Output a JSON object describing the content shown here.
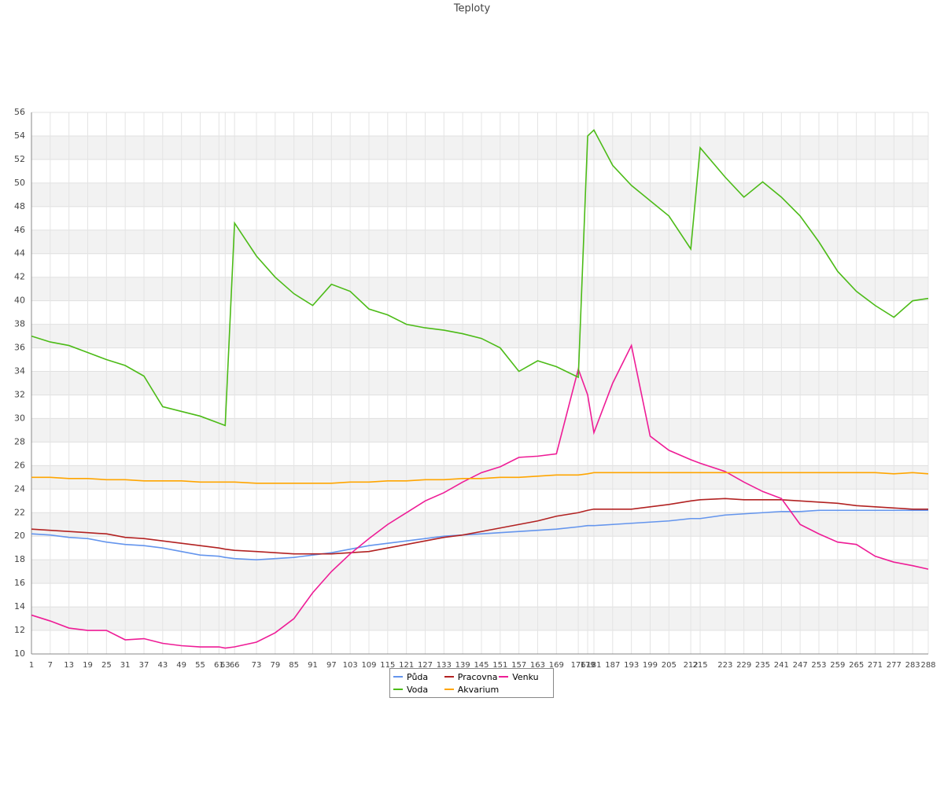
{
  "chart_data": {
    "type": "line",
    "title": "Teploty",
    "x": [
      1,
      7,
      13,
      19,
      25,
      31,
      37,
      43,
      49,
      55,
      61,
      63,
      66,
      73,
      79,
      85,
      91,
      97,
      103,
      109,
      115,
      121,
      127,
      133,
      139,
      145,
      151,
      157,
      163,
      169,
      176,
      179,
      181,
      187,
      193,
      199,
      205,
      212,
      215,
      223,
      229,
      235,
      241,
      247,
      253,
      259,
      265,
      271,
      277,
      283,
      288
    ],
    "xlim": [
      1,
      288
    ],
    "xticks": [
      1,
      7,
      13,
      19,
      25,
      31,
      37,
      43,
      49,
      55,
      61,
      63,
      66,
      73,
      79,
      85,
      91,
      97,
      103,
      109,
      115,
      121,
      127,
      133,
      139,
      145,
      151,
      157,
      163,
      169,
      176,
      179,
      181,
      187,
      193,
      199,
      205,
      212,
      215,
      223,
      229,
      235,
      241,
      247,
      253,
      259,
      265,
      271,
      277,
      283,
      288
    ],
    "ylim": [
      10,
      56
    ],
    "yticks": [
      10,
      12,
      14,
      16,
      18,
      20,
      22,
      24,
      26,
      28,
      30,
      32,
      34,
      36,
      38,
      40,
      42,
      44,
      46,
      48,
      50,
      52,
      54,
      56
    ],
    "grid": true,
    "series": [
      {
        "name": "Půda",
        "color": "#6495ed",
        "values": [
          20.2,
          20.1,
          19.9,
          19.8,
          19.5,
          19.3,
          19.2,
          19.0,
          18.7,
          18.4,
          18.3,
          18.2,
          18.1,
          18.0,
          18.1,
          18.2,
          18.4,
          18.6,
          18.9,
          19.2,
          19.4,
          19.6,
          19.8,
          20.0,
          20.1,
          20.2,
          20.3,
          20.4,
          20.5,
          20.6,
          20.8,
          20.9,
          20.9,
          21.0,
          21.1,
          21.2,
          21.3,
          21.5,
          21.5,
          21.8,
          21.9,
          22.0,
          22.1,
          22.1,
          22.2,
          22.2,
          22.2,
          22.2,
          22.2,
          22.2,
          22.2
        ]
      },
      {
        "name": "Pracovna",
        "color": "#b22222",
        "values": [
          20.6,
          20.5,
          20.4,
          20.3,
          20.2,
          19.9,
          19.8,
          19.6,
          19.4,
          19.2,
          19.0,
          18.9,
          18.8,
          18.7,
          18.6,
          18.5,
          18.5,
          18.5,
          18.6,
          18.7,
          19.0,
          19.3,
          19.6,
          19.9,
          20.1,
          20.4,
          20.7,
          21.0,
          21.3,
          21.7,
          22.0,
          22.2,
          22.3,
          22.3,
          22.3,
          22.5,
          22.7,
          23.0,
          23.1,
          23.2,
          23.1,
          23.1,
          23.1,
          23.0,
          22.9,
          22.8,
          22.6,
          22.5,
          22.4,
          22.3,
          22.3
        ]
      },
      {
        "name": "Venku",
        "color": "#ee1c96",
        "values": [
          13.3,
          12.8,
          12.2,
          12.0,
          12.0,
          11.2,
          11.3,
          10.9,
          10.7,
          10.6,
          10.6,
          10.5,
          10.6,
          11.0,
          11.8,
          13.0,
          15.2,
          17.0,
          18.5,
          19.8,
          21.0,
          22.0,
          23.0,
          23.7,
          24.6,
          25.4,
          25.9,
          26.7,
          26.8,
          27.0,
          34.2,
          32.0,
          28.8,
          33.0,
          36.2,
          28.5,
          27.3,
          26.5,
          26.2,
          25.5,
          24.6,
          23.8,
          23.2,
          21.0,
          20.2,
          19.5,
          19.3,
          18.3,
          17.8,
          17.5,
          17.2
        ]
      },
      {
        "name": "Voda",
        "color": "#4cbb17",
        "values": [
          37.0,
          36.5,
          36.2,
          35.6,
          35.0,
          34.5,
          33.6,
          31.0,
          30.6,
          30.2,
          29.6,
          29.4,
          46.6,
          43.8,
          42.0,
          40.6,
          39.6,
          41.4,
          40.8,
          39.3,
          38.8,
          38.0,
          37.7,
          37.5,
          37.2,
          36.8,
          36.0,
          34.0,
          34.9,
          34.4,
          33.5,
          54.0,
          54.5,
          51.5,
          49.8,
          48.5,
          47.2,
          44.4,
          53.0,
          50.5,
          48.8,
          50.1,
          48.8,
          47.2,
          45.0,
          42.5,
          40.8,
          39.6,
          38.6,
          40.0,
          40.2
        ]
      },
      {
        "name": "Akvarium",
        "color": "#ffa500",
        "values": [
          25.0,
          25.0,
          24.9,
          24.9,
          24.8,
          24.8,
          24.7,
          24.7,
          24.7,
          24.6,
          24.6,
          24.6,
          24.6,
          24.5,
          24.5,
          24.5,
          24.5,
          24.5,
          24.6,
          24.6,
          24.7,
          24.7,
          24.8,
          24.8,
          24.9,
          24.9,
          25.0,
          25.0,
          25.1,
          25.2,
          25.2,
          25.3,
          25.4,
          25.4,
          25.4,
          25.4,
          25.4,
          25.4,
          25.4,
          25.4,
          25.4,
          25.4,
          25.4,
          25.4,
          25.4,
          25.4,
          25.4,
          25.4,
          25.3,
          25.4,
          25.3
        ]
      }
    ]
  }
}
